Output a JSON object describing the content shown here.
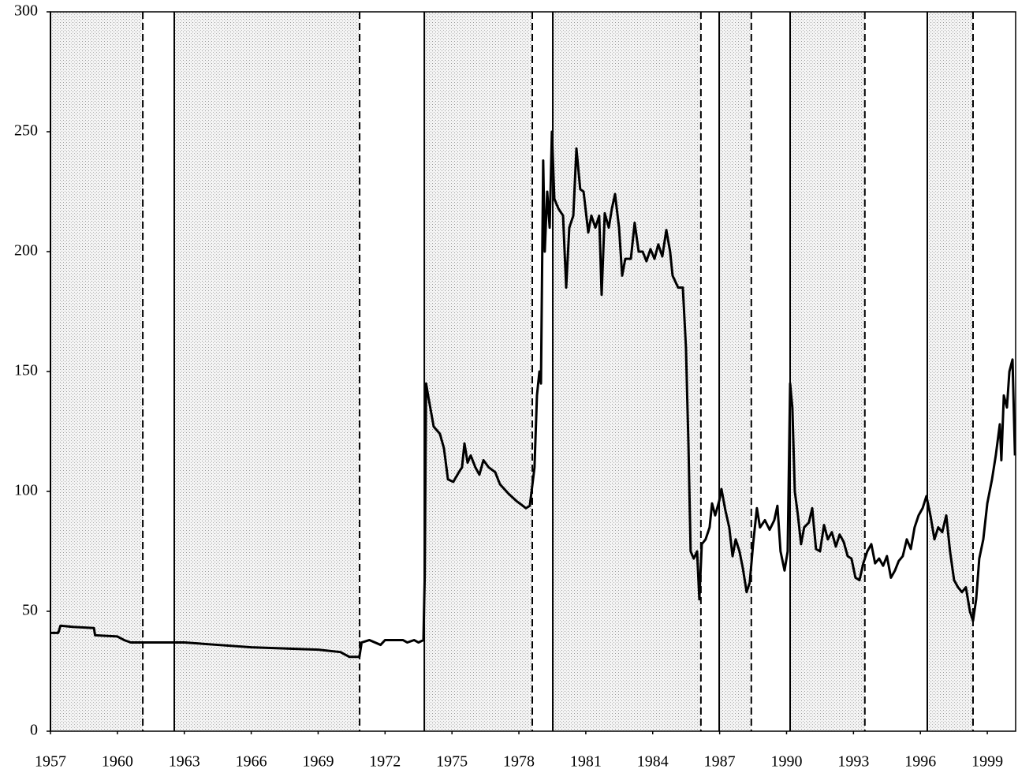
{
  "chart_data": {
    "type": "line",
    "xlim": [
      1957,
      2000.27
    ],
    "ylim": [
      0,
      300
    ],
    "xticks": [
      1957,
      1960,
      1963,
      1966,
      1969,
      1972,
      1975,
      1978,
      1981,
      1984,
      1987,
      1990,
      1993,
      1996,
      1999
    ],
    "yticks": [
      0,
      50,
      100,
      150,
      200,
      250,
      300
    ],
    "shaded_spans": [
      [
        1957,
        1961.14
      ],
      [
        1962.55,
        1970.86
      ],
      [
        1973.76,
        1978.6
      ],
      [
        1979.52,
        1986.16
      ],
      [
        1986.98,
        1988.42
      ],
      [
        1990.16,
        1993.51
      ],
      [
        1996.31,
        1998.36
      ]
    ],
    "color": "#000000",
    "x": [
      1957.0,
      1957.35,
      1957.45,
      1958.0,
      1958.95,
      1959.0,
      1960.0,
      1960.3,
      1960.6,
      1961.0,
      1963.0,
      1964.5,
      1966.0,
      1967.5,
      1969.0,
      1970.0,
      1970.4,
      1970.85,
      1970.95,
      1971.3,
      1971.8,
      1972.0,
      1972.8,
      1973.0,
      1973.3,
      1973.5,
      1973.72,
      1973.78,
      1973.84,
      1973.93,
      1974.18,
      1974.46,
      1974.64,
      1974.82,
      1975.06,
      1975.31,
      1975.45,
      1975.56,
      1975.7,
      1975.84,
      1976.05,
      1976.23,
      1976.41,
      1976.65,
      1976.94,
      1977.15,
      1977.54,
      1977.89,
      1978.32,
      1978.49,
      1978.7,
      1978.81,
      1978.92,
      1978.99,
      1979.09,
      1979.16,
      1979.27,
      1979.38,
      1979.48,
      1979.59,
      1979.77,
      1979.98,
      1980.12,
      1980.26,
      1980.44,
      1980.58,
      1980.75,
      1980.9,
      1981.11,
      1981.25,
      1981.43,
      1981.6,
      1981.71,
      1981.85,
      1982.03,
      1982.17,
      1982.31,
      1982.49,
      1982.63,
      1982.77,
      1983.02,
      1983.19,
      1983.37,
      1983.55,
      1983.72,
      1983.9,
      1984.08,
      1984.25,
      1984.43,
      1984.61,
      1984.78,
      1984.89,
      1985.14,
      1985.35,
      1985.49,
      1985.6,
      1985.7,
      1985.84,
      1985.99,
      1986.09,
      1986.2,
      1986.37,
      1986.55,
      1986.66,
      1986.8,
      1986.98,
      1987.08,
      1987.26,
      1987.43,
      1987.58,
      1987.72,
      1987.89,
      1988.04,
      1988.21,
      1988.35,
      1988.5,
      1988.67,
      1988.81,
      1989.03,
      1989.24,
      1989.45,
      1989.59,
      1989.73,
      1989.91,
      1990.05,
      1990.16,
      1990.26,
      1990.37,
      1990.51,
      1990.65,
      1990.79,
      1991.0,
      1991.15,
      1991.32,
      1991.5,
      1991.68,
      1991.85,
      1992.03,
      1992.21,
      1992.38,
      1992.56,
      1992.74,
      1992.91,
      1993.09,
      1993.27,
      1993.44,
      1993.62,
      1993.8,
      1993.97,
      1994.15,
      1994.33,
      1994.5,
      1994.68,
      1994.86,
      1995.03,
      1995.21,
      1995.39,
      1995.57,
      1995.74,
      1995.92,
      1996.1,
      1996.27,
      1996.45,
      1996.63,
      1996.8,
      1996.98,
      1997.16,
      1997.33,
      1997.51,
      1997.69,
      1997.86,
      1998.04,
      1998.22,
      1998.36,
      1998.5,
      1998.64,
      1998.82,
      1999.0,
      1999.21,
      1999.38,
      1999.56,
      1999.63,
      1999.74,
      1999.88,
      1999.99,
      2000.13,
      2000.24
    ],
    "values": [
      41,
      41,
      44,
      43.5,
      43,
      40,
      39.5,
      38,
      37,
      37,
      37,
      36,
      35,
      34.5,
      34,
      33,
      31,
      31,
      37,
      38,
      36,
      38,
      38,
      37,
      38,
      37,
      38,
      65,
      145,
      140,
      127,
      124,
      118,
      105,
      104,
      108,
      110,
      120,
      112,
      115,
      110,
      107,
      113,
      110,
      108,
      103,
      99,
      96,
      93,
      94,
      110,
      140,
      150,
      145,
      238,
      200,
      225,
      210,
      250,
      222,
      218,
      215,
      185,
      210,
      215,
      243,
      226,
      225,
      208,
      215,
      210,
      215,
      182,
      216,
      210,
      218,
      224,
      210,
      190,
      197,
      197,
      212,
      200,
      200,
      196,
      201,
      197,
      203,
      198,
      209,
      200,
      190,
      185,
      185,
      160,
      120,
      75,
      72,
      75,
      55,
      78,
      80,
      85,
      95,
      90,
      96,
      101,
      92,
      85,
      73,
      80,
      75,
      68,
      58,
      62,
      78,
      93,
      85,
      88,
      84,
      88,
      94,
      75,
      67,
      75,
      145,
      135,
      100,
      90,
      78,
      85,
      87,
      93,
      76,
      75,
      86,
      80,
      83,
      77,
      82,
      79,
      73,
      72,
      64,
      63,
      70,
      75,
      78,
      70,
      72,
      69,
      73,
      64,
      67,
      71,
      73,
      80,
      76,
      85,
      90,
      93,
      98,
      90,
      80,
      85,
      83,
      90,
      75,
      63,
      60,
      58,
      60,
      50,
      46,
      55,
      72,
      80,
      95,
      105,
      115,
      128,
      113,
      140,
      135,
      150,
      155,
      115
    ]
  }
}
